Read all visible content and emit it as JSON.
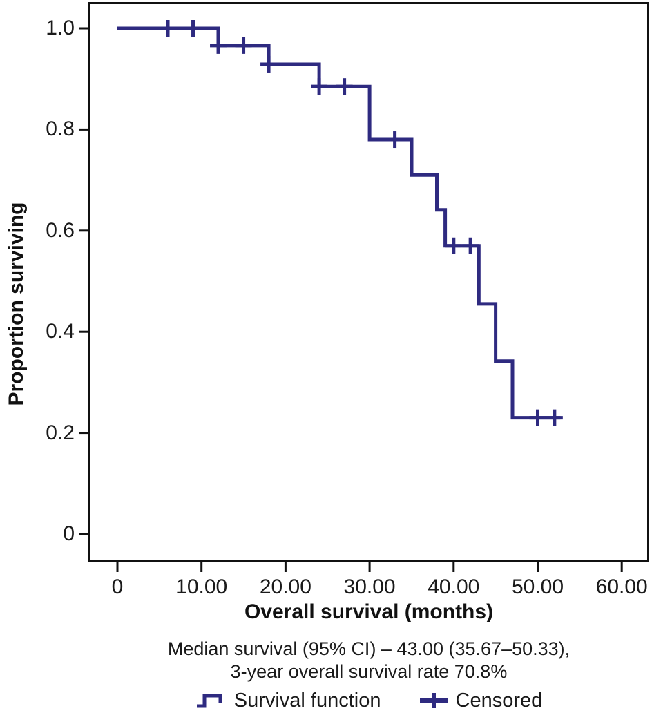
{
  "chart_data": {
    "type": "line",
    "subtype": "kaplan-meier-step",
    "title": "",
    "xlabel": "Overall survival (months)",
    "ylabel": "Proportion surviving",
    "xlim": [
      0,
      63
    ],
    "ylim": [
      0,
      1.05
    ],
    "grid": false,
    "frame": true,
    "xticks": [
      {
        "t": 0,
        "label": "0"
      },
      {
        "t": 10,
        "label": "10.00"
      },
      {
        "t": 20,
        "label": "20.00"
      },
      {
        "t": 30,
        "label": "30.00"
      },
      {
        "t": 40,
        "label": "40.00"
      },
      {
        "t": 50,
        "label": "50.00"
      },
      {
        "t": 60,
        "label": "60.00"
      }
    ],
    "yticks": [
      {
        "v": 1.0,
        "label": "1.0"
      },
      {
        "v": 0.8,
        "label": "0.8"
      },
      {
        "v": 0.6,
        "label": "0.6"
      },
      {
        "v": 0.4,
        "label": "0.4"
      },
      {
        "v": 0.2,
        "label": "0.2"
      },
      {
        "v": 0.0,
        "label": "0"
      }
    ],
    "series": [
      {
        "name": "Survival function",
        "steps": [
          {
            "t": 0,
            "s": 1.0
          },
          {
            "t": 12,
            "s": 0.966
          },
          {
            "t": 18,
            "s": 0.929
          },
          {
            "t": 24,
            "s": 0.885
          },
          {
            "t": 30,
            "s": 0.78
          },
          {
            "t": 35,
            "s": 0.71
          },
          {
            "t": 38,
            "s": 0.641
          },
          {
            "t": 39,
            "s": 0.57
          },
          {
            "t": 43,
            "s": 0.455
          },
          {
            "t": 45,
            "s": 0.342
          },
          {
            "t": 47,
            "s": 0.23
          }
        ],
        "curve_end_t": 52.7
      }
    ],
    "censored": [
      {
        "t": 6,
        "s": 1.0
      },
      {
        "t": 9,
        "s": 1.0
      },
      {
        "t": 12,
        "s": 0.966
      },
      {
        "t": 15,
        "s": 0.966
      },
      {
        "t": 18,
        "s": 0.929
      },
      {
        "t": 24,
        "s": 0.885
      },
      {
        "t": 27,
        "s": 0.885
      },
      {
        "t": 33,
        "s": 0.78
      },
      {
        "t": 40,
        "s": 0.57
      },
      {
        "t": 42,
        "s": 0.57
      },
      {
        "t": 50,
        "s": 0.23
      },
      {
        "t": 52,
        "s": 0.23
      }
    ],
    "caption_line1": "Median survival (95% CI) – 43.00 (35.67–50.33),",
    "caption_line2": "3-year overall survival rate 70.8%",
    "legend_position": "bottom-center",
    "legend": [
      {
        "label": "Survival function",
        "symbol": "step-line"
      },
      {
        "label": "Censored",
        "symbol": "plus-mark"
      }
    ],
    "colors": {
      "curve": "#2e2a80",
      "axis": "#111111",
      "text": "#1a1a1a",
      "background": "#ffffff"
    }
  }
}
